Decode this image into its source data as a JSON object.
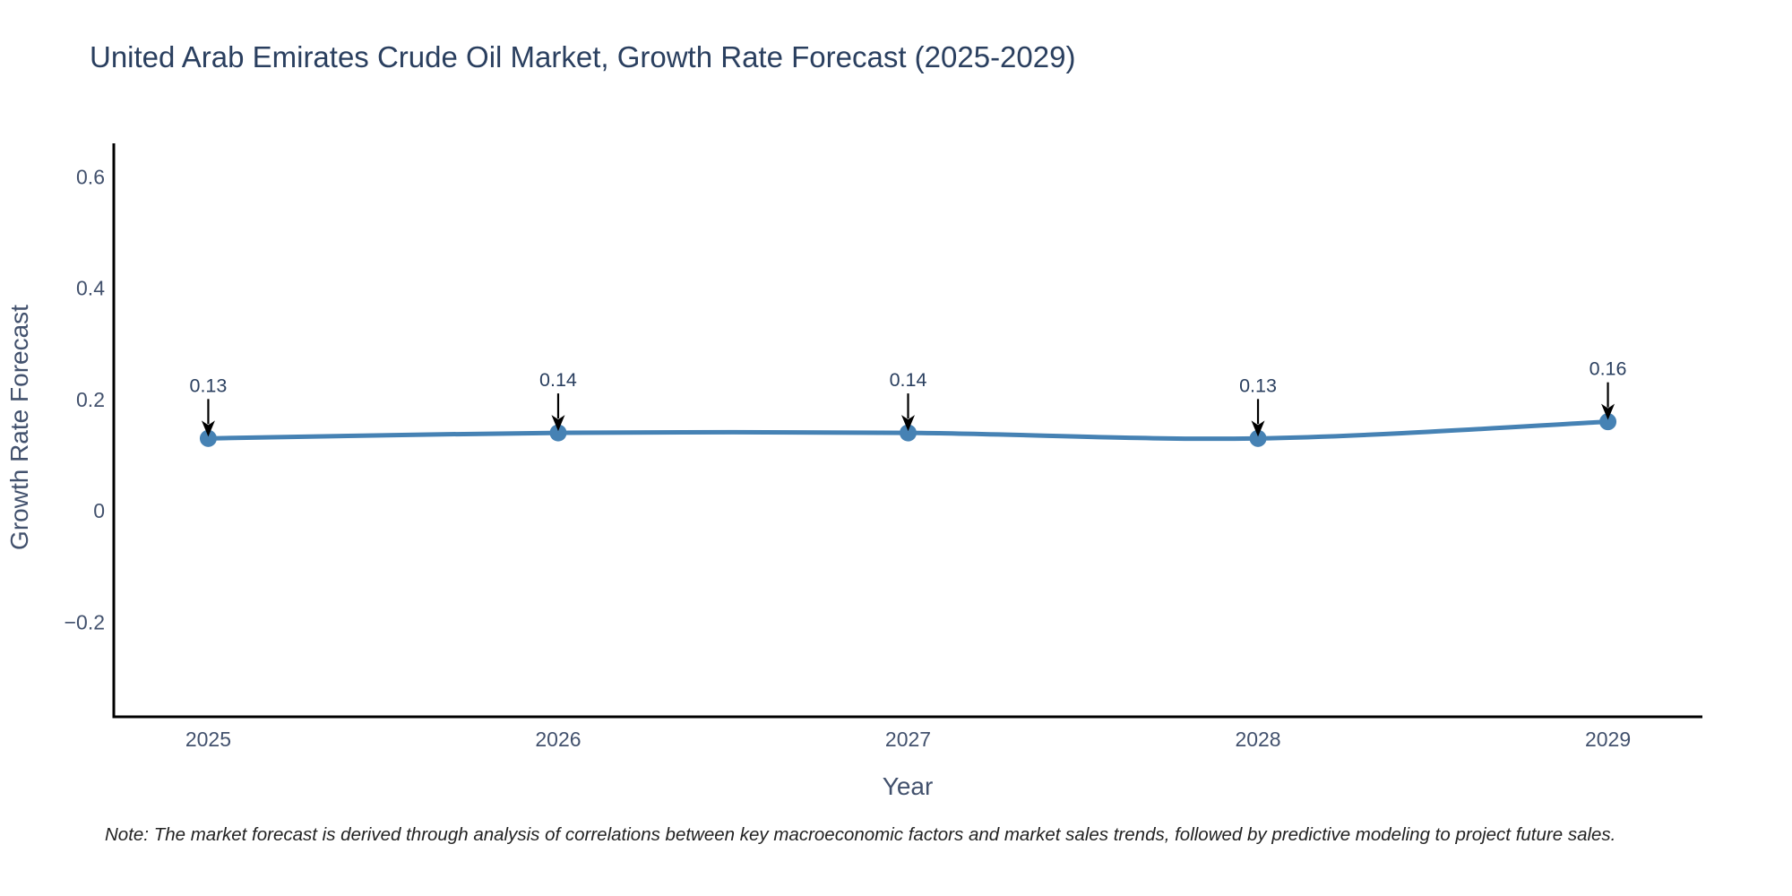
{
  "chart_data": {
    "type": "line",
    "title": "United Arab Emirates Crude Oil Market, Growth Rate Forecast (2025-2029)",
    "xlabel": "Year",
    "ylabel": "Growth Rate Forecast",
    "note": "Note: The market forecast is derived through analysis of correlations between key macroeconomic factors and market sales trends, followed by predictive modeling to project future sales.",
    "x": [
      2025,
      2026,
      2027,
      2028,
      2029
    ],
    "x_tick_labels": [
      "2025",
      "2026",
      "2027",
      "2028",
      "2029"
    ],
    "series": [
      {
        "name": "Growth Rate Forecast",
        "values": [
          0.13,
          0.14,
          0.14,
          0.13,
          0.16
        ]
      }
    ],
    "point_labels": [
      "0.13",
      "0.14",
      "0.14",
      "0.13",
      "0.16"
    ],
    "y_ticks": [
      {
        "value": -0.2,
        "label": "−0.2"
      },
      {
        "value": 0,
        "label": "0"
      },
      {
        "value": 0.2,
        "label": "0.2"
      },
      {
        "value": 0.4,
        "label": "0.4"
      },
      {
        "value": 0.6,
        "label": "0.6"
      }
    ],
    "xlim": [
      2024.73,
      2029.27
    ],
    "ylim": [
      -0.37,
      0.66
    ],
    "grid": false,
    "legend": "none",
    "line_shape": "spline",
    "colors": {
      "line": "#4682b4",
      "marker": "#4682b4",
      "axis": "#000000",
      "title_text": "#2a3f5f",
      "tick_text": "#42516d",
      "annotation_text": "#2a3f5f",
      "arrow": "#000000",
      "note_text": "#222222",
      "background": "#ffffff"
    }
  }
}
